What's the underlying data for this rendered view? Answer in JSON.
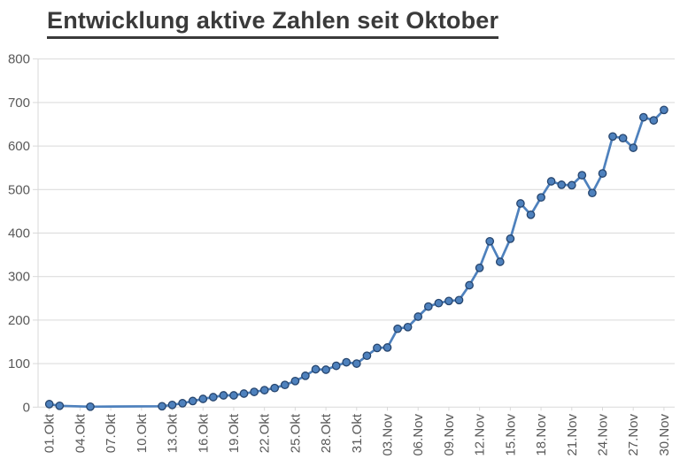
{
  "chart_data": {
    "type": "line",
    "title": "Entwicklung aktive Zahlen seit Oktober",
    "xlabel": "",
    "ylabel": "",
    "ylim": [
      0,
      800
    ],
    "y_ticks": [
      0,
      100,
      200,
      300,
      400,
      500,
      600,
      700,
      800
    ],
    "x_tick_step": 3,
    "x_tick_labels": [
      "01.Okt",
      "04.Okt",
      "07.Okt",
      "10.Okt",
      "13.Okt",
      "16.Okt",
      "19.Okt",
      "22.Okt",
      "25.Okt",
      "28.Okt",
      "31.Okt",
      "03.Nov",
      "06.Nov",
      "09.Nov",
      "12.Nov",
      "15.Nov",
      "18.Nov",
      "21.Nov",
      "24.Nov",
      "27.Nov",
      "30.Nov"
    ],
    "grid": true,
    "legend": false,
    "colors": {
      "line": "#4E81BD",
      "marker_fill": "#4E81BD",
      "marker_border": "#26456E",
      "gridline": "#D9D9D9",
      "axis": "#D9D9D9",
      "tick_text": "#595959",
      "title_text": "#3A3A3A"
    },
    "points": [
      {
        "date": "01.Okt",
        "value": 7
      },
      {
        "date": "02.Okt",
        "value": 3
      },
      {
        "date": "03.Okt",
        "value": null
      },
      {
        "date": "04.Okt",
        "value": null
      },
      {
        "date": "05.Okt",
        "value": 1
      },
      {
        "date": "06.Okt",
        "value": null
      },
      {
        "date": "07.Okt",
        "value": null
      },
      {
        "date": "08.Okt",
        "value": null
      },
      {
        "date": "09.Okt",
        "value": null
      },
      {
        "date": "10.Okt",
        "value": null
      },
      {
        "date": "11.Okt",
        "value": null
      },
      {
        "date": "12.Okt",
        "value": 2
      },
      {
        "date": "13.Okt",
        "value": 5
      },
      {
        "date": "14.Okt",
        "value": 9
      },
      {
        "date": "15.Okt",
        "value": 14
      },
      {
        "date": "16.Okt",
        "value": 19
      },
      {
        "date": "17.Okt",
        "value": 23
      },
      {
        "date": "18.Okt",
        "value": 27
      },
      {
        "date": "19.Okt",
        "value": 27
      },
      {
        "date": "20.Okt",
        "value": 31
      },
      {
        "date": "21.Okt",
        "value": 35
      },
      {
        "date": "22.Okt",
        "value": 39
      },
      {
        "date": "23.Okt",
        "value": 44
      },
      {
        "date": "24.Okt",
        "value": 51
      },
      {
        "date": "25.Okt",
        "value": 60
      },
      {
        "date": "26.Okt",
        "value": 72
      },
      {
        "date": "27.Okt",
        "value": 87
      },
      {
        "date": "28.Okt",
        "value": 86
      },
      {
        "date": "29.Okt",
        "value": 95
      },
      {
        "date": "30.Okt",
        "value": 103
      },
      {
        "date": "31.Okt",
        "value": 100
      },
      {
        "date": "01.Nov",
        "value": 118
      },
      {
        "date": "02.Nov",
        "value": 136
      },
      {
        "date": "03.Nov",
        "value": 137
      },
      {
        "date": "04.Nov",
        "value": 180
      },
      {
        "date": "05.Nov",
        "value": 184
      },
      {
        "date": "06.Nov",
        "value": 208
      },
      {
        "date": "07.Nov",
        "value": 231
      },
      {
        "date": "08.Nov",
        "value": 239
      },
      {
        "date": "09.Nov",
        "value": 244
      },
      {
        "date": "10.Nov",
        "value": 246
      },
      {
        "date": "11.Nov",
        "value": 280
      },
      {
        "date": "12.Nov",
        "value": 320
      },
      {
        "date": "13.Nov",
        "value": 381
      },
      {
        "date": "14.Nov",
        "value": 334
      },
      {
        "date": "15.Nov",
        "value": 387
      },
      {
        "date": "16.Nov",
        "value": 468
      },
      {
        "date": "17.Nov",
        "value": 442
      },
      {
        "date": "18.Nov",
        "value": 482
      },
      {
        "date": "19.Nov",
        "value": 519
      },
      {
        "date": "20.Nov",
        "value": 511
      },
      {
        "date": "21.Nov",
        "value": 510
      },
      {
        "date": "22.Nov",
        "value": 533
      },
      {
        "date": "23.Nov",
        "value": 492
      },
      {
        "date": "24.Nov",
        "value": 537
      },
      {
        "date": "25.Nov",
        "value": 622
      },
      {
        "date": "26.Nov",
        "value": 618
      },
      {
        "date": "27.Nov",
        "value": 596
      },
      {
        "date": "28.Nov",
        "value": 666
      },
      {
        "date": "29.Nov",
        "value": 659
      },
      {
        "date": "30.Nov",
        "value": 683
      }
    ]
  }
}
